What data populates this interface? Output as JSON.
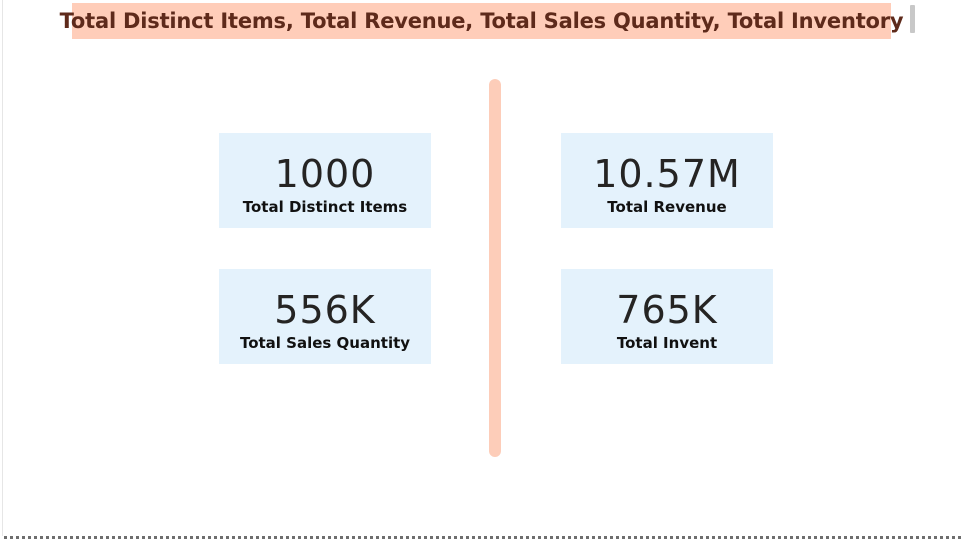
{
  "title": "Total Distinct Items, Total Revenue, Total Sales Quantity, Total Inventory",
  "cards": {
    "distinct_items": {
      "value": "1000",
      "label": "Total Distinct Items"
    },
    "revenue": {
      "value": "10.57M",
      "label": "Total Revenue"
    },
    "sales_quantity": {
      "value": "556K",
      "label": "Total Sales Quantity"
    },
    "inventory": {
      "value": "765K",
      "label": "Total Invent"
    }
  },
  "colors": {
    "title_background": "#ffcdb9",
    "title_text": "#5e2a1b",
    "card_background": "#e4f2fc",
    "divider": "#fdcdb9"
  }
}
